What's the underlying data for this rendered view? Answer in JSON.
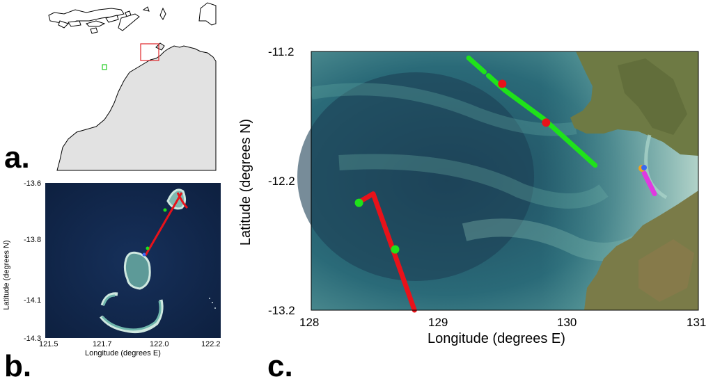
{
  "panels": {
    "a": {
      "label": "a."
    },
    "b": {
      "label": "b.",
      "x_ticks": [
        "121.5",
        "121.7",
        "122.0",
        "122.2"
      ],
      "y_ticks": [
        "-13.6",
        "-13.8",
        "-14.1",
        "-14.3"
      ],
      "xlabel": "Longitude (degrees E)",
      "ylabel": "Latitude (degrees N)"
    },
    "c": {
      "label": "c.",
      "x_ticks": [
        "128",
        "129",
        "130",
        "131"
      ],
      "y_ticks": [
        "-11.2",
        "-12.2",
        "-13.2"
      ],
      "xlabel": "Longitude (degrees E)",
      "ylabel": "Latitude (degrees N)",
      "xlim": [
        128,
        131
      ],
      "ylim": [
        -13.2,
        -11.2
      ]
    }
  },
  "colors": {
    "track_red": "#e8121a",
    "track_green": "#1fe21a",
    "track_magenta": "#e03ae0",
    "marker_orange": "#f2a21a",
    "marker_blue": "#3a6af0",
    "box_red": "#e0262a",
    "box_green": "#22cc22",
    "land_grey": "#e2e2e2"
  },
  "chart_data": [
    {
      "type": "scatter",
      "panel": "c",
      "xlim": [
        128,
        131
      ],
      "ylim": [
        -13.2,
        -11.2
      ],
      "series": [
        {
          "color": "#1fe21a",
          "kind": "track",
          "points": [
            [
              129.22,
              -11.25
            ],
            [
              129.5,
              -11.5
            ],
            [
              129.8,
              -11.72
            ],
            [
              130.2,
              -12.08
            ]
          ]
        },
        {
          "color": "#e8121a",
          "kind": "markers",
          "points": [
            [
              129.48,
              -11.45
            ],
            [
              129.82,
              -11.75
            ]
          ]
        },
        {
          "color": "#e8121a",
          "kind": "track",
          "points": [
            [
              128.36,
              -12.37
            ],
            [
              128.48,
              -12.3
            ],
            [
              128.64,
              -12.75
            ],
            [
              128.8,
              -13.2
            ]
          ]
        },
        {
          "color": "#1fe21a",
          "kind": "markers",
          "points": [
            [
              128.37,
              -12.37
            ],
            [
              128.65,
              -12.73
            ]
          ]
        },
        {
          "color": "#e03ae0",
          "kind": "track",
          "points": [
            [
              130.58,
              -12.14
            ],
            [
              130.66,
              -12.3
            ]
          ]
        }
      ]
    },
    {
      "type": "scatter",
      "panel": "b",
      "xlim": [
        121.5,
        122.2
      ],
      "ylim": [
        -14.3,
        -13.6
      ],
      "series": [
        {
          "color": "#e8121a",
          "kind": "track",
          "points": [
            [
              122.07,
              -13.65
            ],
            [
              121.95,
              -13.87
            ]
          ]
        },
        {
          "color": "#1fe21a",
          "kind": "markers",
          "points": [
            [
              122.03,
              -13.72
            ],
            [
              121.97,
              -13.83
            ]
          ]
        }
      ]
    }
  ]
}
